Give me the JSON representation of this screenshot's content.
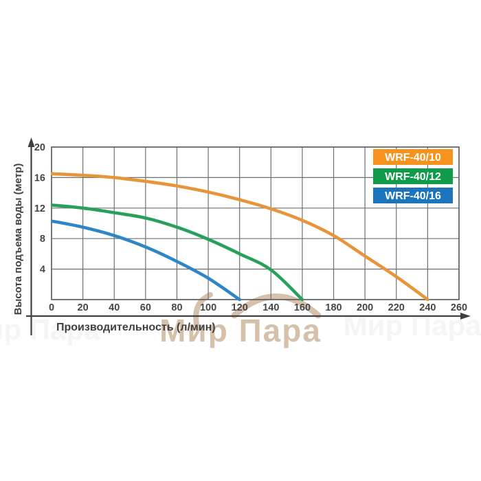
{
  "watermark": {
    "text": "Мир Пара"
  },
  "chart_data": {
    "type": "line",
    "title": "",
    "xlabel": "Производительность (л/мин)",
    "ylabel": "Высота подъема воды (метр)",
    "xlim": [
      0,
      260
    ],
    "ylim": [
      0,
      20
    ],
    "x_ticks": [
      0,
      20,
      40,
      60,
      80,
      100,
      120,
      140,
      160,
      180,
      200,
      220,
      240,
      260
    ],
    "y_ticks": [
      20,
      16,
      12,
      8,
      4
    ],
    "y_gridlines": [
      0,
      4,
      8,
      12,
      16,
      20
    ],
    "grid": "on",
    "legend_position": "top-right",
    "grid_color": "#6E6F72",
    "text_color": "#414042",
    "series": [
      {
        "name": "WRF-40/10",
        "badge_color": "#F6921E",
        "line_color": "#E8943B",
        "x": [
          0,
          20,
          40,
          60,
          80,
          100,
          120,
          140,
          160,
          180,
          200,
          220,
          240
        ],
        "y": [
          16.5,
          16.3,
          16.0,
          15.5,
          14.9,
          14.1,
          13.1,
          11.9,
          10.4,
          8.4,
          5.7,
          3.0,
          0
        ]
      },
      {
        "name": "WRF-40/12",
        "badge_color": "#0F9B4A",
        "line_color": "#27A159",
        "x": [
          0,
          20,
          40,
          60,
          80,
          100,
          120,
          140,
          160
        ],
        "y": [
          12.4,
          12.0,
          11.4,
          10.7,
          9.5,
          7.9,
          6.0,
          3.9,
          0
        ]
      },
      {
        "name": "WRF-40/16",
        "badge_color": "#1C75BC",
        "line_color": "#2E86C6",
        "x": [
          0,
          20,
          40,
          60,
          80,
          100,
          120
        ],
        "y": [
          10.3,
          9.5,
          8.4,
          6.9,
          5.0,
          2.8,
          0
        ]
      }
    ]
  }
}
